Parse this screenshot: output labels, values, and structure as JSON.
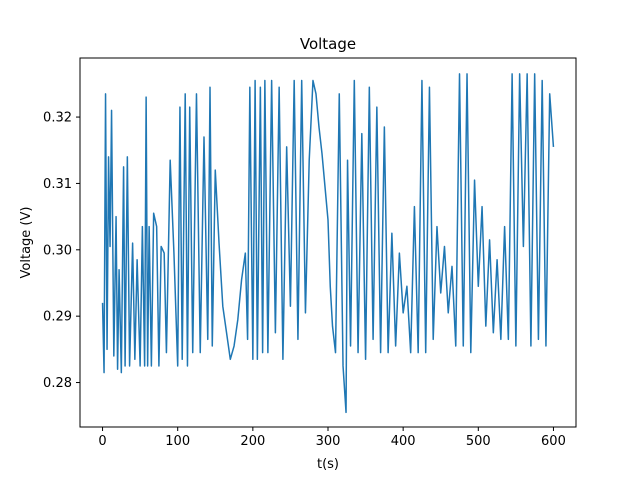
{
  "chart_data": {
    "type": "line",
    "title": "Voltage",
    "xlabel": "t(s)",
    "ylabel": "Voltage (V)",
    "xlim": [
      -30,
      630
    ],
    "ylim": [
      0.2733,
      0.3289
    ],
    "xticks": [
      0,
      100,
      200,
      300,
      400,
      500,
      600
    ],
    "xtick_labels": [
      "0",
      "100",
      "200",
      "300",
      "400",
      "500",
      "600"
    ],
    "yticks": [
      0.28,
      0.29,
      0.3,
      0.31,
      0.32
    ],
    "ytick_labels": [
      "0.28",
      "0.29",
      "0.30",
      "0.31",
      "0.32"
    ],
    "grid": false,
    "legend": "none",
    "color": "#1f77b4",
    "series": [
      {
        "x": [
          0,
          2,
          4,
          6,
          8,
          10,
          12,
          15,
          18,
          20,
          22,
          25,
          28,
          30,
          33,
          36,
          40,
          43,
          46,
          50,
          53,
          56,
          58,
          60,
          62,
          65,
          68,
          72,
          75,
          78,
          82,
          85,
          90,
          95,
          100,
          103,
          106,
          110,
          113,
          116,
          120,
          125,
          130,
          135,
          140,
          143,
          146,
          150,
          155,
          160,
          165,
          170,
          175,
          180,
          185,
          190,
          193,
          196,
          200,
          203,
          206,
          210,
          213,
          216,
          220,
          225,
          230,
          235,
          240,
          245,
          250,
          255,
          260,
          265,
          270,
          275,
          280,
          284,
          288,
          292,
          296,
          300,
          303,
          306,
          310,
          315,
          320,
          324,
          326,
          330,
          335,
          340,
          345,
          350,
          355,
          360,
          365,
          370,
          375,
          380,
          385,
          390,
          395,
          400,
          405,
          410,
          415,
          420,
          425,
          430,
          435,
          440,
          445,
          450,
          455,
          460,
          465,
          470,
          475,
          480,
          485,
          490,
          495,
          500,
          505,
          510,
          515,
          520,
          525,
          530,
          535,
          540,
          545,
          550,
          555,
          560,
          565,
          570,
          575,
          580,
          585,
          590,
          595,
          600
        ],
        "y": [
          0.292,
          0.2815,
          0.3235,
          0.285,
          0.314,
          0.3005,
          0.321,
          0.284,
          0.305,
          0.282,
          0.297,
          0.2815,
          0.3125,
          0.2825,
          0.314,
          0.2825,
          0.301,
          0.2835,
          0.2985,
          0.2825,
          0.3035,
          0.2825,
          0.323,
          0.2825,
          0.3035,
          0.2825,
          0.3055,
          0.3035,
          0.2825,
          0.3005,
          0.2995,
          0.2845,
          0.3135,
          0.2995,
          0.2825,
          0.3215,
          0.2835,
          0.3235,
          0.2825,
          0.3215,
          0.2845,
          0.3235,
          0.2845,
          0.317,
          0.2865,
          0.3245,
          0.2855,
          0.312,
          0.301,
          0.2915,
          0.2875,
          0.2835,
          0.2855,
          0.2895,
          0.2955,
          0.2995,
          0.2865,
          0.3245,
          0.2835,
          0.3255,
          0.2835,
          0.3245,
          0.2845,
          0.3255,
          0.2845,
          0.3255,
          0.2875,
          0.3245,
          0.2835,
          0.3155,
          0.2915,
          0.3255,
          0.2865,
          0.3255,
          0.2905,
          0.3135,
          0.3255,
          0.3235,
          0.3185,
          0.3145,
          0.3095,
          0.3045,
          0.2945,
          0.2885,
          0.2845,
          0.3235,
          0.2825,
          0.2755,
          0.3135,
          0.2855,
          0.3255,
          0.2845,
          0.3175,
          0.2835,
          0.3245,
          0.2865,
          0.3215,
          0.2845,
          0.3185,
          0.2845,
          0.3025,
          0.2855,
          0.2995,
          0.2905,
          0.2945,
          0.2845,
          0.3065,
          0.2845,
          0.3255,
          0.2845,
          0.3245,
          0.2865,
          0.3035,
          0.2935,
          0.3005,
          0.2905,
          0.2975,
          0.2855,
          0.3265,
          0.2855,
          0.3265,
          0.2845,
          0.3105,
          0.2945,
          0.3065,
          0.2885,
          0.3015,
          0.2875,
          0.2985,
          0.2865,
          0.3035,
          0.2865,
          0.3265,
          0.2855,
          0.3265,
          0.3005,
          0.3265,
          0.2855,
          0.3265,
          0.2865,
          0.3255,
          0.2855,
          0.3235,
          0.3155
        ]
      }
    ]
  }
}
